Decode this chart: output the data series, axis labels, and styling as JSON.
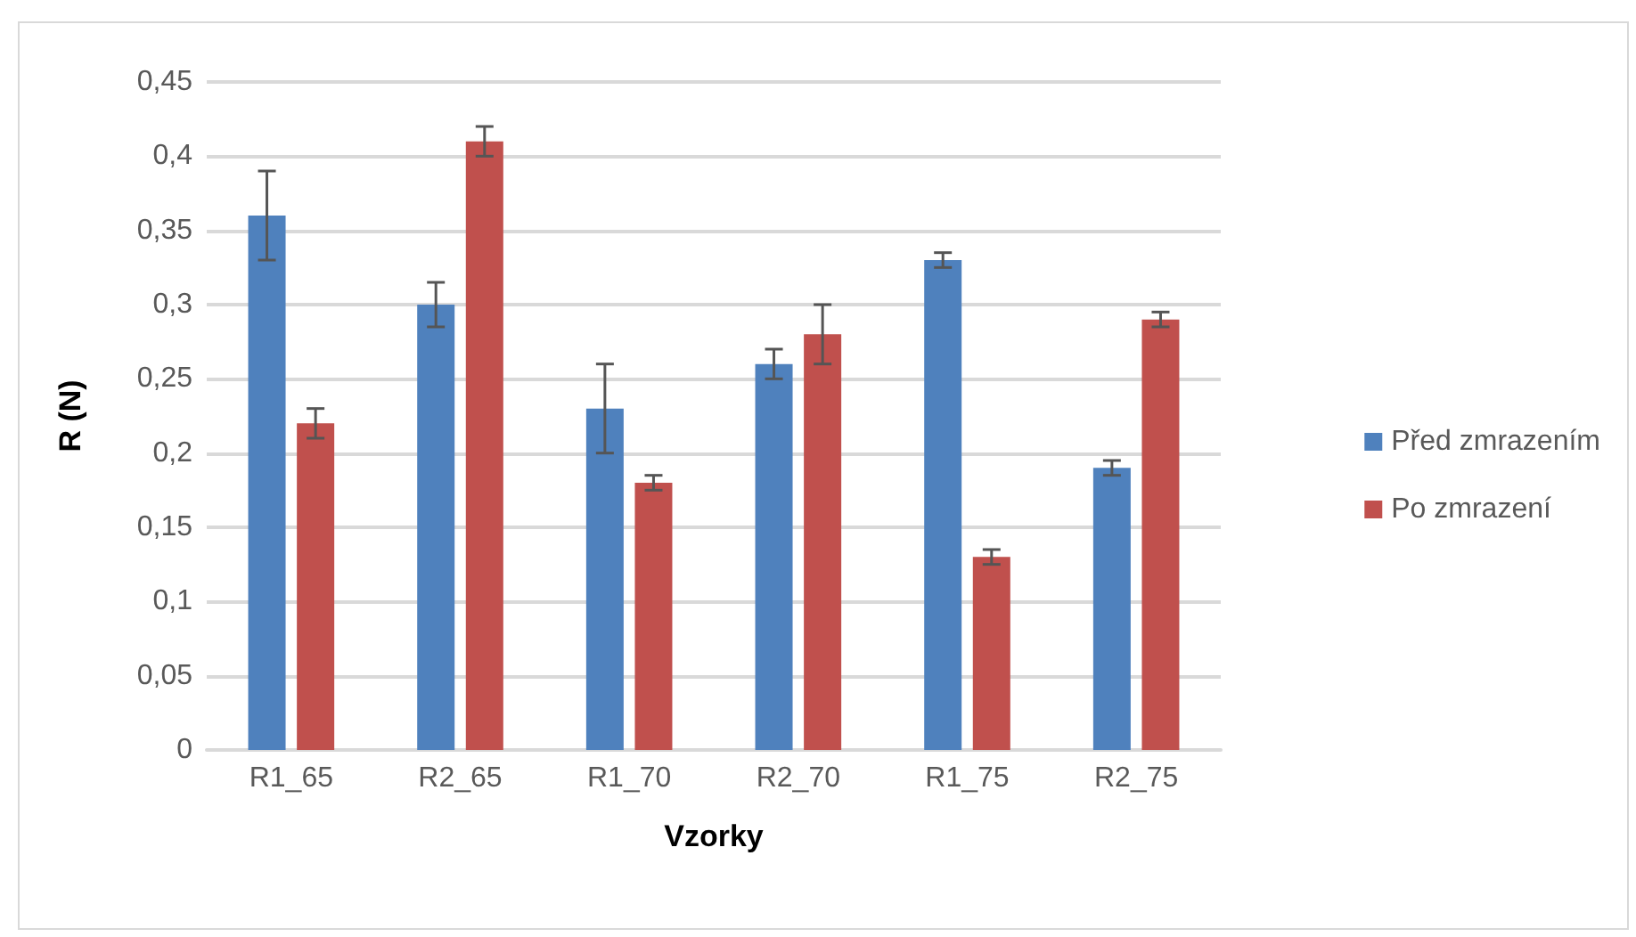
{
  "chart_data": {
    "type": "bar",
    "xlabel": "Vzorky",
    "ylabel": "R (N)",
    "categories": [
      "R1_65",
      "R2_65",
      "R1_70",
      "R2_70",
      "R1_75",
      "R2_75"
    ],
    "series": [
      {
        "name": "Před zmrazením",
        "color": "#4f81bd",
        "values": [
          0.36,
          0.3,
          0.23,
          0.26,
          0.33,
          0.19
        ],
        "errors": [
          0.03,
          0.015,
          0.03,
          0.01,
          0.005,
          0.005
        ]
      },
      {
        "name": "Po zmrazení",
        "color": "#c0504d",
        "values": [
          0.22,
          0.41,
          0.18,
          0.28,
          0.13,
          0.29
        ],
        "errors": [
          0.01,
          0.01,
          0.005,
          0.02,
          0.005,
          0.005
        ]
      }
    ],
    "ylim": [
      0,
      0.45
    ],
    "yticks": [
      {
        "value": 0,
        "label": "0"
      },
      {
        "value": 0.05,
        "label": "0,05"
      },
      {
        "value": 0.1,
        "label": "0,1"
      },
      {
        "value": 0.15,
        "label": "0,15"
      },
      {
        "value": 0.2,
        "label": "0,2"
      },
      {
        "value": 0.25,
        "label": "0,25"
      },
      {
        "value": 0.3,
        "label": "0,3"
      },
      {
        "value": 0.35,
        "label": "0,35"
      },
      {
        "value": 0.4,
        "label": "0,4"
      },
      {
        "value": 0.45,
        "label": "0,45"
      }
    ],
    "grid": "y",
    "legend": "right"
  }
}
